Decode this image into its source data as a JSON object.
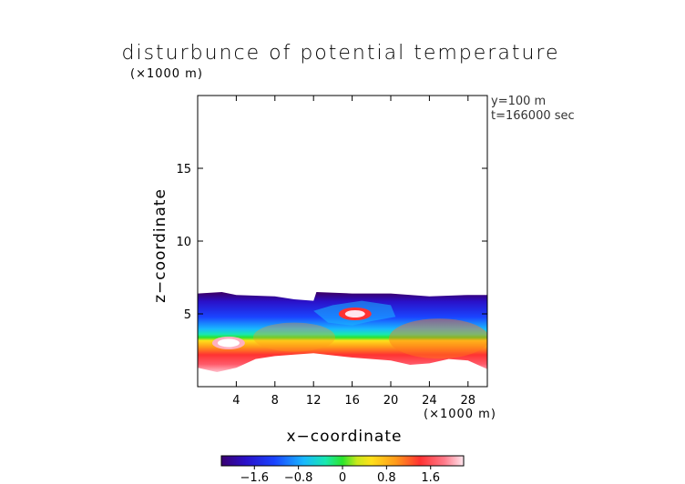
{
  "chart_data": {
    "type": "heatmap",
    "title": "disturbunce of potential temperature",
    "z_unit_label": "(×1000 m)",
    "x_unit_label": "(×1000 m)",
    "xlabel": "x−coordinate",
    "ylabel": "z−coordinate",
    "info": [
      "y=100  m",
      "t=166000 sec"
    ],
    "xlim": [
      0,
      30
    ],
    "ylim": [
      0,
      20
    ],
    "x_ticks": [
      4,
      8,
      12,
      16,
      20,
      24,
      28
    ],
    "x_tick_labels": [
      "4",
      "8",
      "12",
      "16",
      "20",
      "24",
      "28"
    ],
    "y_ticks": [
      5,
      10,
      15
    ],
    "y_tick_labels": [
      "5",
      "10",
      "15"
    ],
    "colorbar": {
      "range": [
        -2.2,
        2.2
      ],
      "ticks": [
        -1.6,
        -0.8,
        0,
        0.8,
        1.6
      ],
      "tick_labels": [
        "−1.6",
        "−0.8",
        "0",
        "0.8",
        "1.6"
      ]
    },
    "field_description": {
      "cold_top_z": 6.4,
      "cold_band_bottom_z": 4.9,
      "warm_core_z": 3.0,
      "warm_bottom_z": 1.0
    }
  }
}
